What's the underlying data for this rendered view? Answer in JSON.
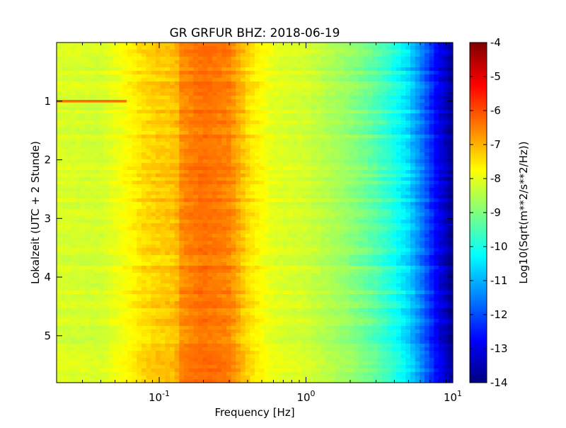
{
  "chart_data": {
    "type": "heatmap",
    "title": "GR GRFUR BHZ: 2018-06-19",
    "xlabel": "Frequency [Hz]",
    "ylabel": "Lokalzeit (UTC + 2 Stunde)",
    "xscale": "log",
    "xlim": [
      0.02,
      10
    ],
    "ylim": [
      0,
      5.8
    ],
    "x_ticks": [
      {
        "value": 0.1,
        "base": "10",
        "exponent": "-1"
      },
      {
        "value": 1,
        "base": "10",
        "exponent": "0"
      },
      {
        "value": 10,
        "base": "10",
        "exponent": "1"
      }
    ],
    "y_ticks": [
      {
        "value": 1,
        "label": "1"
      },
      {
        "value": 2,
        "label": "2"
      },
      {
        "value": 3,
        "label": "3"
      },
      {
        "value": 4,
        "label": "4"
      },
      {
        "value": 5,
        "label": "5"
      }
    ],
    "y_inverted": true,
    "grid": false,
    "colormap": "jet",
    "colorbar": {
      "label": "Log10(Sqrt(m**2/s**2/Hz))",
      "range": [
        -14,
        -4
      ],
      "ticks": [
        "-4",
        "-5",
        "-6",
        "-7",
        "-8",
        "-9",
        "-10",
        "-11",
        "-12",
        "-13",
        "-14"
      ],
      "colors": [
        "#00007f",
        "#0000ff",
        "#007fff",
        "#00ffff",
        "#7fff7f",
        "#ffff00",
        "#ff7f00",
        "#ff0000",
        "#7f0000"
      ]
    },
    "spectrum_profile": {
      "frequency_hz": [
        0.02,
        0.04,
        0.06,
        0.08,
        0.1,
        0.13,
        0.14,
        0.2,
        0.3,
        0.4,
        0.6,
        1.0,
        1.5,
        2.0,
        3.0,
        4.0,
        5.0,
        6.0,
        7.0,
        8.0,
        10.0
      ],
      "level": [
        -8.0,
        -8.1,
        -7.6,
        -7.2,
        -7.1,
        -7.0,
        -6.6,
        -6.3,
        -6.5,
        -7.2,
        -7.9,
        -8.1,
        -8.5,
        -8.8,
        -9.4,
        -10.0,
        -10.6,
        -11.4,
        -12.2,
        -13.0,
        -13.9
      ]
    },
    "annotations": [
      {
        "type": "horizontal_line",
        "time": 1.0,
        "freq_range": [
          0.02,
          0.06
        ],
        "level": -6.3
      }
    ]
  }
}
